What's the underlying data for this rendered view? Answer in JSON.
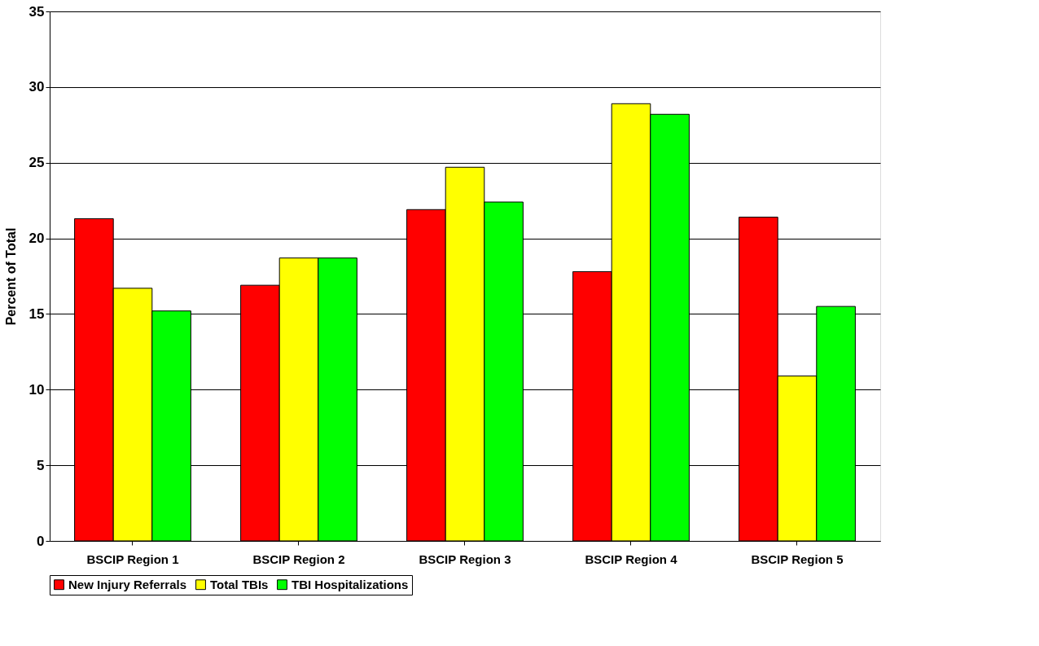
{
  "chart_data": {
    "type": "bar",
    "ylabel": "Percent of Total",
    "categories": [
      "BSCIP Region 1",
      "BSCIP Region 2",
      "BSCIP Region 3",
      "BSCIP Region 4",
      "BSCIP Region 5"
    ],
    "series": [
      {
        "name": "New Injury Referrals",
        "color": "#ff0000",
        "values": [
          21.3,
          16.9,
          21.9,
          17.8,
          21.4
        ]
      },
      {
        "name": "Total TBIs",
        "color": "#ffff00",
        "values": [
          16.7,
          18.7,
          24.7,
          28.9,
          10.9
        ]
      },
      {
        "name": "TBI Hospitalizations",
        "color": "#00ff00",
        "values": [
          15.2,
          18.7,
          22.4,
          28.2,
          15.5
        ]
      }
    ],
    "ylim": [
      0,
      35
    ],
    "yticks": [
      0,
      5,
      10,
      15,
      20,
      25,
      30,
      35
    ],
    "grid": "y",
    "legend": "bottom"
  }
}
